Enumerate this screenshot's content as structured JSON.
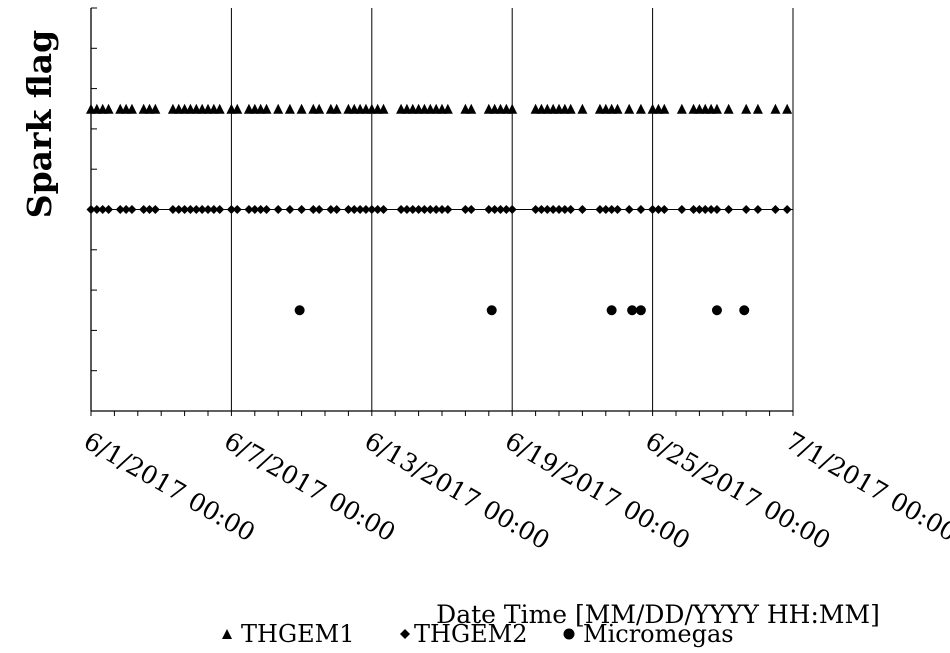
{
  "chart_data": {
    "type": "scatter",
    "title": "",
    "xlabel": "Date Time [MM/DD/YYYY HH:MM]",
    "ylabel": "Spark flag",
    "xlim": [
      "6/1/2017 00:00",
      "7/1/2017 00:00"
    ],
    "ylim": [
      -1.5,
      0.5
    ],
    "x_tick_labels": [
      "6/1/2017 00:00",
      "6/7/2017 00:00",
      "6/13/2017 00:00",
      "6/19/2017 00:00",
      "6/25/2017 00:00",
      "7/1/2017 00:00"
    ],
    "grid": "vertical major gridlines at each labeled date; horizontal line at the THGEM2 level",
    "legend_position": "bottom",
    "series": [
      {
        "name": "THGEM1",
        "marker": "triangle",
        "y": 0.0,
        "x": [
          "6/1/2017 00:00",
          "6/1/2017 06:00",
          "6/1/2017 12:00",
          "6/1/2017 18:00",
          "6/2/2017 06:00",
          "6/2/2017 12:00",
          "6/2/2017 18:00",
          "6/3/2017 06:00",
          "6/3/2017 12:00",
          "6/3/2017 18:00",
          "6/4/2017 12:00",
          "6/4/2017 18:00",
          "6/5/2017 00:00",
          "6/5/2017 06:00",
          "6/5/2017 12:00",
          "6/5/2017 18:00",
          "6/6/2017 00:00",
          "6/6/2017 06:00",
          "6/6/2017 12:00",
          "6/7/2017 00:00",
          "6/7/2017 06:00",
          "6/7/2017 18:00",
          "6/8/2017 00:00",
          "6/8/2017 06:00",
          "6/8/2017 12:00",
          "6/9/2017 00:00",
          "6/9/2017 12:00",
          "6/10/2017 00:00",
          "6/10/2017 12:00",
          "6/10/2017 18:00",
          "6/11/2017 06:00",
          "6/11/2017 12:00",
          "6/12/2017 00:00",
          "6/12/2017 06:00",
          "6/12/2017 12:00",
          "6/12/2017 18:00",
          "6/13/2017 00:00",
          "6/13/2017 06:00",
          "6/13/2017 12:00",
          "6/14/2017 06:00",
          "6/14/2017 12:00",
          "6/14/2017 18:00",
          "6/15/2017 00:00",
          "6/15/2017 06:00",
          "6/15/2017 12:00",
          "6/15/2017 18:00",
          "6/16/2017 00:00",
          "6/16/2017 06:00",
          "6/17/2017 00:00",
          "6/17/2017 06:00",
          "6/18/2017 00:00",
          "6/18/2017 06:00",
          "6/18/2017 12:00",
          "6/18/2017 18:00",
          "6/19/2017 00:00",
          "6/20/2017 00:00",
          "6/20/2017 06:00",
          "6/20/2017 12:00",
          "6/20/2017 18:00",
          "6/21/2017 00:00",
          "6/21/2017 06:00",
          "6/21/2017 12:00",
          "6/22/2017 00:00",
          "6/22/2017 18:00",
          "6/23/2017 00:00",
          "6/23/2017 06:00",
          "6/23/2017 12:00",
          "6/24/2017 00:00",
          "6/24/2017 12:00",
          "6/25/2017 00:00",
          "6/25/2017 06:00",
          "6/25/2017 12:00",
          "6/26/2017 06:00",
          "6/26/2017 18:00",
          "6/27/2017 00:00",
          "6/27/2017 06:00",
          "6/27/2017 12:00",
          "6/27/2017 18:00",
          "6/28/2017 06:00",
          "6/29/2017 00:00",
          "6/29/2017 12:00",
          "6/30/2017 06:00",
          "6/30/2017 18:00"
        ]
      },
      {
        "name": "THGEM2",
        "marker": "diamond",
        "y": -0.5,
        "x": [
          "6/1/2017 00:00",
          "6/1/2017 06:00",
          "6/1/2017 12:00",
          "6/1/2017 18:00",
          "6/2/2017 06:00",
          "6/2/2017 12:00",
          "6/2/2017 18:00",
          "6/3/2017 06:00",
          "6/3/2017 12:00",
          "6/3/2017 18:00",
          "6/4/2017 12:00",
          "6/4/2017 18:00",
          "6/5/2017 00:00",
          "6/5/2017 06:00",
          "6/5/2017 12:00",
          "6/5/2017 18:00",
          "6/6/2017 00:00",
          "6/6/2017 06:00",
          "6/6/2017 12:00",
          "6/7/2017 00:00",
          "6/7/2017 06:00",
          "6/7/2017 18:00",
          "6/8/2017 00:00",
          "6/8/2017 06:00",
          "6/8/2017 12:00",
          "6/9/2017 00:00",
          "6/9/2017 12:00",
          "6/10/2017 00:00",
          "6/10/2017 12:00",
          "6/10/2017 18:00",
          "6/11/2017 06:00",
          "6/11/2017 12:00",
          "6/12/2017 00:00",
          "6/12/2017 06:00",
          "6/12/2017 12:00",
          "6/12/2017 18:00",
          "6/13/2017 00:00",
          "6/13/2017 06:00",
          "6/13/2017 12:00",
          "6/14/2017 06:00",
          "6/14/2017 12:00",
          "6/14/2017 18:00",
          "6/15/2017 00:00",
          "6/15/2017 06:00",
          "6/15/2017 12:00",
          "6/15/2017 18:00",
          "6/16/2017 00:00",
          "6/16/2017 06:00",
          "6/17/2017 00:00",
          "6/17/2017 06:00",
          "6/18/2017 00:00",
          "6/18/2017 06:00",
          "6/18/2017 12:00",
          "6/18/2017 18:00",
          "6/19/2017 00:00",
          "6/20/2017 00:00",
          "6/20/2017 06:00",
          "6/20/2017 12:00",
          "6/20/2017 18:00",
          "6/21/2017 00:00",
          "6/21/2017 06:00",
          "6/21/2017 12:00",
          "6/22/2017 00:00",
          "6/22/2017 18:00",
          "6/23/2017 00:00",
          "6/23/2017 06:00",
          "6/23/2017 12:00",
          "6/24/2017 00:00",
          "6/24/2017 12:00",
          "6/25/2017 00:00",
          "6/25/2017 06:00",
          "6/25/2017 12:00",
          "6/26/2017 06:00",
          "6/26/2017 18:00",
          "6/27/2017 00:00",
          "6/27/2017 06:00",
          "6/27/2017 12:00",
          "6/27/2017 18:00",
          "6/28/2017 06:00",
          "6/29/2017 00:00",
          "6/29/2017 12:00",
          "6/30/2017 06:00",
          "6/30/2017 18:00"
        ]
      },
      {
        "name": "Micromegas",
        "marker": "circle",
        "y": -1.0,
        "x": [
          "6/9/2017 22:00",
          "6/18/2017 03:00",
          "6/23/2017 06:00",
          "6/24/2017 03:00",
          "6/24/2017 12:00",
          "6/27/2017 18:00",
          "6/28/2017 22:00"
        ]
      }
    ],
    "colors": {
      "marker": "#000000",
      "axis": "#000000",
      "grid": "#000000"
    }
  }
}
